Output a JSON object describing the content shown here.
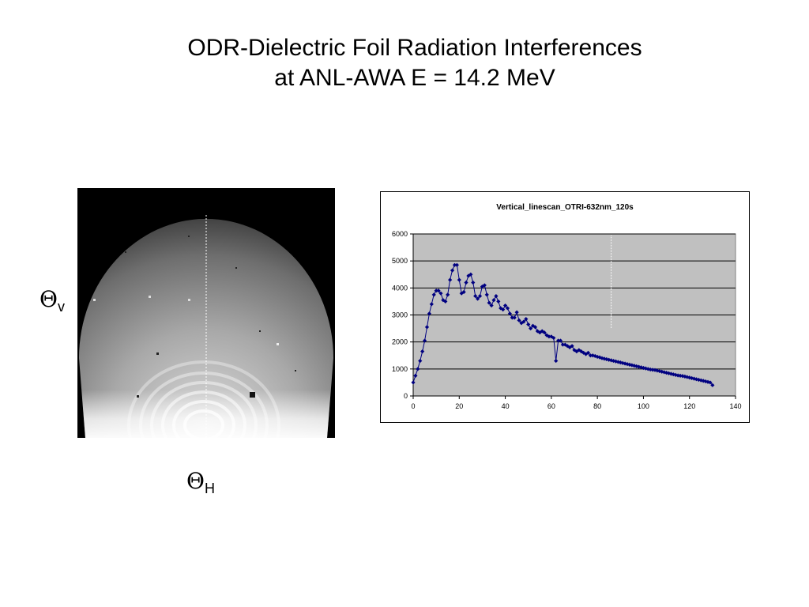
{
  "slide": {
    "title_line1": "ODR-Dielectric Foil Radiation Interferences",
    "title_line2": "at ANL-AWA  E = 14.2 MeV",
    "theta_v": {
      "symbol": "Θ",
      "subscript": "v"
    },
    "theta_h": {
      "symbol": "Θ",
      "subscript": "H"
    }
  },
  "chart_data": {
    "type": "line",
    "title": "Vertical_linescan_OTRI-632nm_120s",
    "xlabel": "",
    "ylabel": "",
    "xlim": [
      0,
      140
    ],
    "ylim": [
      0,
      6000
    ],
    "xticks": [
      0,
      20,
      40,
      60,
      80,
      100,
      120,
      140
    ],
    "yticks": [
      0,
      1000,
      2000,
      3000,
      4000,
      5000,
      6000
    ],
    "grid": "horizontal",
    "legend": "none",
    "plot_background": "#c0c0c0",
    "series_color": "#000080",
    "series": [
      {
        "x": [
          0,
          1,
          2,
          3,
          4,
          5,
          6,
          7,
          8,
          9,
          10,
          11,
          12,
          13,
          14,
          15,
          16,
          17,
          18,
          19,
          20,
          21,
          22,
          23,
          24,
          25,
          26,
          27,
          28,
          29,
          30,
          31,
          32,
          33,
          34,
          35,
          36,
          37,
          38,
          39,
          40,
          41,
          42,
          43,
          44,
          45,
          46,
          47,
          48,
          49,
          50,
          51,
          52,
          53,
          54,
          55,
          56,
          57,
          58,
          59,
          60,
          61,
          62,
          63,
          64,
          65,
          66,
          67,
          68,
          69,
          70,
          71,
          72,
          73,
          74,
          75,
          76,
          77,
          78,
          79,
          80,
          81,
          82,
          83,
          84,
          85,
          86,
          87,
          88,
          89,
          90,
          91,
          92,
          93,
          94,
          95,
          96,
          97,
          98,
          99,
          100,
          101,
          102,
          103,
          104,
          105,
          106,
          107,
          108,
          109,
          110,
          111,
          112,
          113,
          114,
          115,
          116,
          117,
          118,
          119,
          120,
          121,
          122,
          123,
          124,
          125,
          126,
          127,
          128,
          129,
          130
        ],
        "values": [
          500,
          750,
          1000,
          1300,
          1650,
          2050,
          2550,
          3050,
          3400,
          3750,
          3900,
          3900,
          3800,
          3550,
          3500,
          3750,
          4300,
          4650,
          4850,
          4850,
          4300,
          3800,
          3850,
          4200,
          4450,
          4500,
          4200,
          3700,
          3600,
          3700,
          4050,
          4100,
          3750,
          3450,
          3350,
          3550,
          3700,
          3500,
          3250,
          3200,
          3350,
          3250,
          3050,
          2900,
          2900,
          3100,
          2800,
          2700,
          2750,
          2850,
          2650,
          2500,
          2600,
          2550,
          2400,
          2350,
          2400,
          2350,
          2250,
          2200,
          2200,
          2150,
          1300,
          2050,
          2050,
          1900,
          1900,
          1850,
          1800,
          1850,
          1700,
          1650,
          1700,
          1650,
          1600,
          1550,
          1600,
          1500,
          1500,
          1480,
          1450,
          1430,
          1400,
          1380,
          1360,
          1340,
          1320,
          1300,
          1280,
          1260,
          1240,
          1220,
          1200,
          1180,
          1160,
          1140,
          1120,
          1100,
          1080,
          1060,
          1040,
          1020,
          1000,
          980,
          970,
          960,
          940,
          920,
          900,
          880,
          860,
          840,
          820,
          800,
          780,
          760,
          750,
          740,
          720,
          700,
          680,
          660,
          640,
          620,
          600,
          580,
          560,
          540,
          520,
          500,
          400
        ]
      }
    ]
  }
}
